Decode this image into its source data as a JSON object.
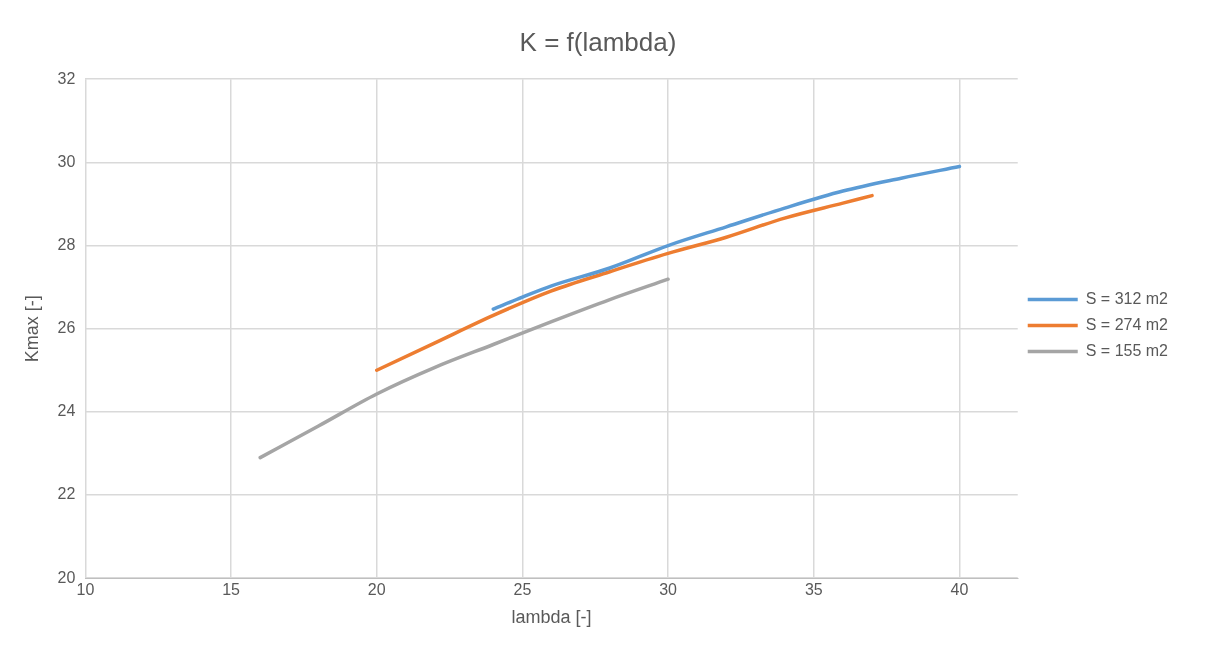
{
  "chart_data": {
    "type": "line",
    "title": "K = f(lambda)",
    "xlabel": "lambda [-]",
    "ylabel": "Kmax [-]",
    "xlim": [
      10,
      42
    ],
    "xticks": [
      10,
      15,
      20,
      25,
      30,
      35,
      40
    ],
    "ylim": [
      20,
      32
    ],
    "yticks": [
      20,
      22,
      24,
      26,
      28,
      30,
      32
    ],
    "grid": true,
    "legend": "right",
    "marker": "none",
    "line_style": "solid",
    "series": [
      {
        "name": "S = 312 m2",
        "color": "#5b9bd5",
        "x": [
          24,
          25,
          26,
          28,
          30,
          32,
          34,
          36,
          38,
          40
        ],
        "values": [
          26.47,
          26.76,
          27.03,
          27.46,
          28.0,
          28.45,
          28.9,
          29.31,
          29.62,
          29.9
        ]
      },
      {
        "name": "S = 274 m2",
        "color": "#ed7d31",
        "x": [
          20,
          22,
          24,
          26,
          28,
          30,
          32,
          34,
          36,
          37
        ],
        "values": [
          25.0,
          25.66,
          26.32,
          26.91,
          27.37,
          27.81,
          28.2,
          28.66,
          29.02,
          29.2
        ]
      },
      {
        "name": "S = 155 m2",
        "color": "#a5a5a5",
        "x": [
          16,
          18,
          20,
          22,
          24,
          26,
          28,
          30
        ],
        "values": [
          22.9,
          23.66,
          24.43,
          25.07,
          25.62,
          26.17,
          26.7,
          27.19
        ]
      }
    ]
  }
}
